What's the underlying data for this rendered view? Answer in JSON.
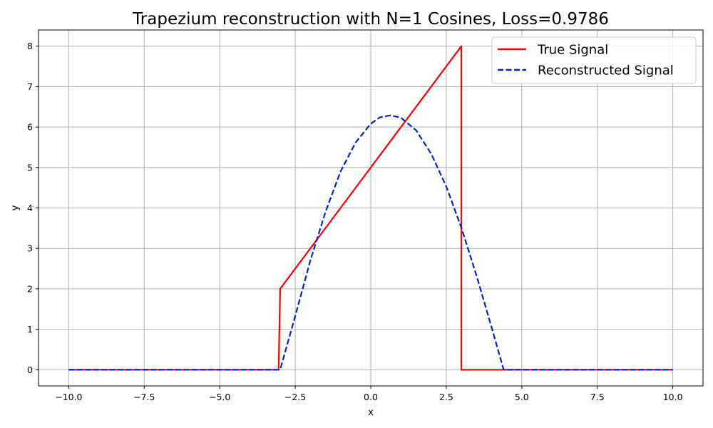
{
  "chart_data": {
    "type": "line",
    "title": "Trapezium reconstruction with N=1 Cosines, Loss=0.9786",
    "xlabel": "x",
    "ylabel": "y",
    "xlim": [
      -11,
      11
    ],
    "ylim": [
      -0.4,
      8.4
    ],
    "grid": true,
    "legend_position": "top-right",
    "x_ticks": [
      -10,
      -7.5,
      -5,
      -2.5,
      0,
      2.5,
      5,
      7.5,
      10
    ],
    "x_tick_labels": [
      "−10.0",
      "−7.5",
      "−5.0",
      "−2.5",
      "0.0",
      "2.5",
      "5.0",
      "7.5",
      "10.0"
    ],
    "y_ticks": [
      0,
      1,
      2,
      3,
      4,
      5,
      6,
      7,
      8
    ],
    "y_tick_labels": [
      "0",
      "1",
      "2",
      "3",
      "4",
      "5",
      "6",
      "7",
      "8"
    ],
    "series": [
      {
        "name": "True Signal",
        "color": "#ff0000",
        "style": "solid",
        "x": [
          -10,
          -3.05,
          -3.0,
          3.0,
          3.0,
          10
        ],
        "y": [
          0,
          0,
          2,
          8,
          0,
          0
        ]
      },
      {
        "name": "Reconstructed Signal",
        "color": "#0022cc",
        "style": "dashed",
        "x": [
          -10,
          -3.05,
          -3.0,
          -2.5,
          -2.0,
          -1.5,
          -1.0,
          -0.5,
          0.0,
          0.3,
          0.65,
          1.0,
          1.5,
          2.0,
          2.5,
          3.0,
          3.5,
          4.0,
          4.4,
          10
        ],
        "y": [
          0,
          0,
          0.0,
          1.33,
          2.7,
          3.9,
          4.9,
          5.62,
          6.08,
          6.24,
          6.29,
          6.23,
          5.92,
          5.34,
          4.53,
          3.51,
          2.33,
          1.05,
          0.0,
          0
        ]
      }
    ]
  }
}
